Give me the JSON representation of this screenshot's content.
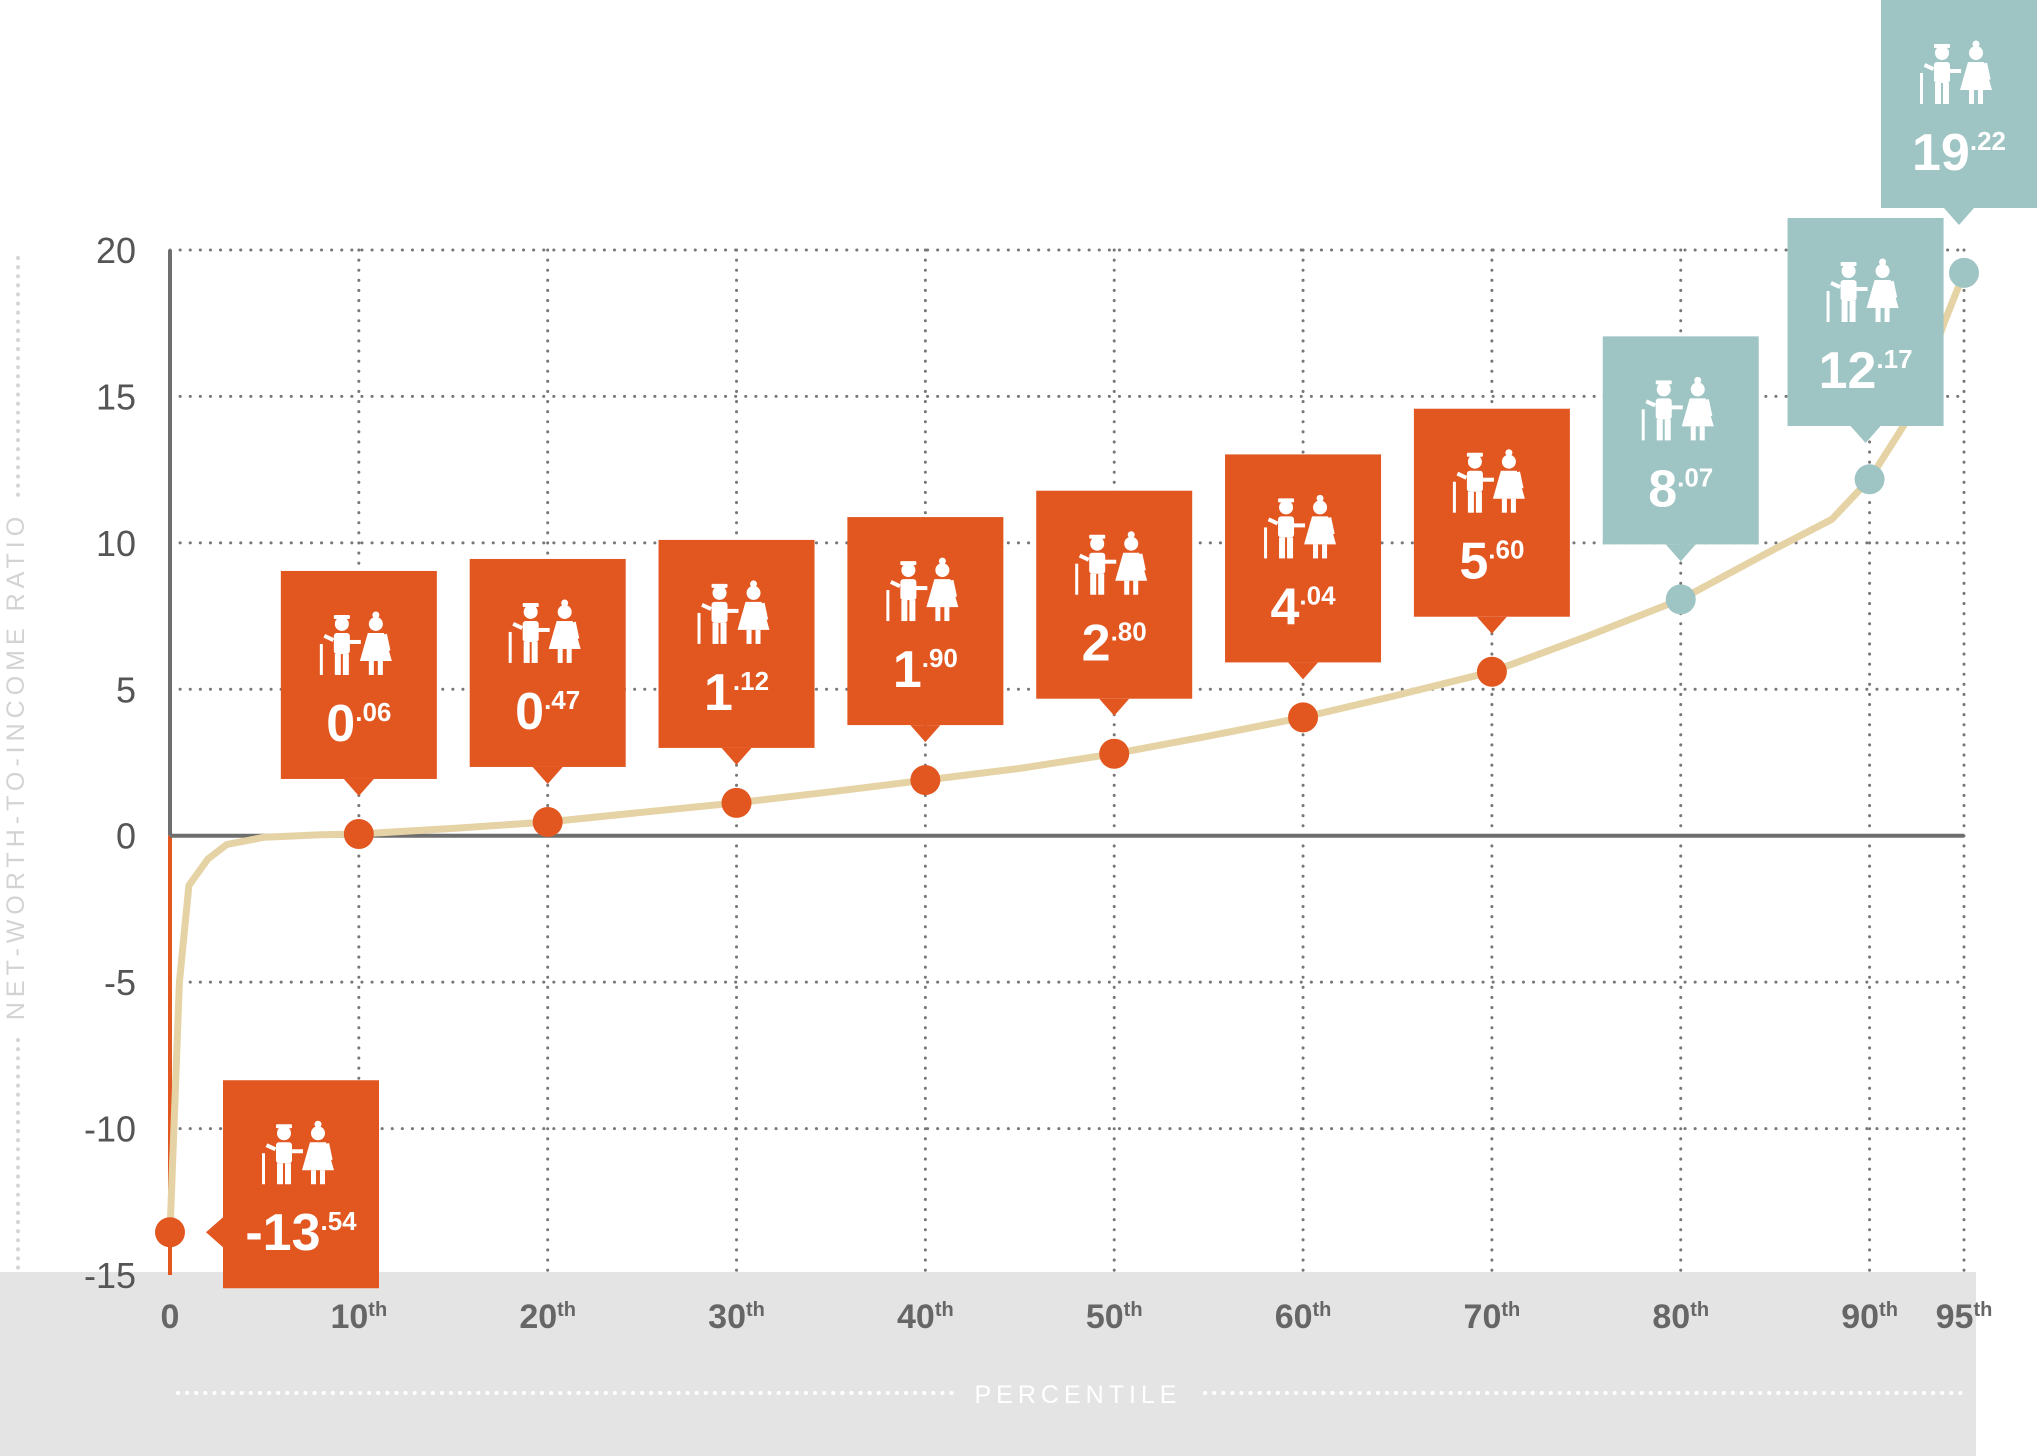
{
  "chart_data": {
    "type": "line",
    "title": "",
    "xlabel": "PERCENTILE",
    "ylabel": "NET-WORTH-TO-INCOME RATIO",
    "ylim": [
      -15,
      20
    ],
    "xlim": [
      0,
      95
    ],
    "yticks": [
      "20",
      "15",
      "10",
      "5",
      "0",
      "-5",
      "-10",
      "-15"
    ],
    "xticks": [
      {
        "value": 0,
        "main": "0",
        "sup": ""
      },
      {
        "value": 10,
        "main": "10",
        "sup": "th"
      },
      {
        "value": 20,
        "main": "20",
        "sup": "th"
      },
      {
        "value": 30,
        "main": "30",
        "sup": "th"
      },
      {
        "value": 40,
        "main": "40",
        "sup": "th"
      },
      {
        "value": 50,
        "main": "50",
        "sup": "th"
      },
      {
        "value": 60,
        "main": "60",
        "sup": "th"
      },
      {
        "value": 70,
        "main": "70",
        "sup": "th"
      },
      {
        "value": 80,
        "main": "80",
        "sup": "th"
      },
      {
        "value": 90,
        "main": "90",
        "sup": "th"
      },
      {
        "value": 95,
        "main": "95",
        "sup": "th"
      }
    ],
    "grid": true,
    "series": [
      {
        "x": [
          0,
          0.5,
          1,
          2,
          3,
          5,
          8,
          10,
          15,
          20,
          25,
          30,
          35,
          40,
          45,
          50,
          55,
          60,
          65,
          70,
          75,
          80,
          85,
          88,
          90,
          92,
          93,
          94,
          95
        ],
        "y": [
          -13.54,
          -5,
          -1.7,
          -0.8,
          -0.3,
          -0.05,
          0.03,
          0.06,
          0.25,
          0.47,
          0.8,
          1.12,
          1.5,
          1.9,
          2.3,
          2.8,
          3.4,
          4.04,
          4.8,
          5.6,
          6.8,
          8.07,
          9.8,
          10.8,
          12.17,
          14.2,
          15.8,
          17.6,
          19.22
        ]
      }
    ],
    "markers": [
      {
        "x": 0,
        "y": -13.54,
        "label_main": "-13",
        "label_dec": ".54",
        "group": "low"
      },
      {
        "x": 10,
        "y": 0.06,
        "label_main": "0",
        "label_dec": ".06",
        "group": "low"
      },
      {
        "x": 20,
        "y": 0.47,
        "label_main": "0",
        "label_dec": ".47",
        "group": "low"
      },
      {
        "x": 30,
        "y": 1.12,
        "label_main": "1",
        "label_dec": ".12",
        "group": "low"
      },
      {
        "x": 40,
        "y": 1.9,
        "label_main": "1",
        "label_dec": ".90",
        "group": "low"
      },
      {
        "x": 50,
        "y": 2.8,
        "label_main": "2",
        "label_dec": ".80",
        "group": "low"
      },
      {
        "x": 60,
        "y": 4.04,
        "label_main": "4",
        "label_dec": ".04",
        "group": "low"
      },
      {
        "x": 70,
        "y": 5.6,
        "label_main": "5",
        "label_dec": ".60",
        "group": "low"
      },
      {
        "x": 80,
        "y": 8.07,
        "label_main": "8",
        "label_dec": ".07",
        "group": "high"
      },
      {
        "x": 90,
        "y": 12.17,
        "label_main": "12",
        "label_dec": ".17",
        "group": "high"
      },
      {
        "x": 95,
        "y": 19.22,
        "label_main": "19",
        "label_dec": ".22",
        "group": "high"
      }
    ],
    "colors": {
      "low": "#e25620",
      "high": "#9ec4c4",
      "curve": "#e6d3a5",
      "grid": "#777777",
      "axis": "#6e6e6e",
      "negative_axis": "#e25620",
      "band": "#e4e4e4"
    },
    "icon": "elderly-couple-icon"
  }
}
